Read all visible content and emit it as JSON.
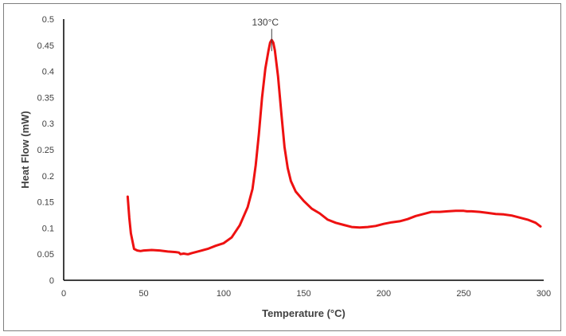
{
  "chart_data": {
    "type": "line",
    "title": "",
    "xlabel": "Temperature (°C)",
    "ylabel": "Heat Flow (mW)",
    "xlim": [
      0,
      300
    ],
    "ylim": [
      0,
      0.5
    ],
    "x_ticks": [
      0,
      50,
      100,
      150,
      200,
      250,
      300
    ],
    "y_ticks": [
      0,
      0.05,
      0.1,
      0.15,
      0.2,
      0.25,
      0.3,
      0.35,
      0.4,
      0.45,
      0.5
    ],
    "x_tick_labels": [
      "0",
      "50",
      "100",
      "150",
      "200",
      "250",
      "300"
    ],
    "y_tick_labels": [
      "0",
      "0.05",
      "0.1",
      "0.15",
      "0.2",
      "0.25",
      "0.3",
      "0.35",
      "0.4",
      "0.45",
      "0.5"
    ],
    "grid": false,
    "legend": "none",
    "line_color": "#ee1111",
    "annotation": {
      "text": "130°C",
      "x": 130,
      "y": 0.46
    },
    "series": [
      {
        "x": [
          40,
          41,
          42,
          43,
          44,
          46,
          48,
          50,
          55,
          60,
          65,
          70,
          72,
          73,
          75,
          77,
          78,
          80,
          85,
          90,
          95,
          100,
          105,
          110,
          115,
          118,
          120,
          122,
          124,
          126,
          128,
          129,
          130,
          131,
          132,
          134,
          136,
          138,
          140,
          142,
          145,
          150,
          155,
          160,
          165,
          170,
          175,
          180,
          185,
          190,
          195,
          200,
          205,
          210,
          215,
          220,
          225,
          230,
          235,
          240,
          245,
          250,
          252,
          255,
          260,
          265,
          270,
          275,
          280,
          285,
          290,
          295,
          298
        ],
        "y": [
          0.16,
          0.12,
          0.09,
          0.075,
          0.06,
          0.057,
          0.056,
          0.057,
          0.058,
          0.057,
          0.055,
          0.054,
          0.053,
          0.05,
          0.051,
          0.05,
          0.05,
          0.052,
          0.056,
          0.06,
          0.066,
          0.071,
          0.082,
          0.105,
          0.14,
          0.175,
          0.22,
          0.28,
          0.35,
          0.405,
          0.44,
          0.455,
          0.46,
          0.455,
          0.44,
          0.39,
          0.32,
          0.255,
          0.215,
          0.19,
          0.17,
          0.152,
          0.137,
          0.128,
          0.116,
          0.11,
          0.106,
          0.102,
          0.101,
          0.102,
          0.104,
          0.108,
          0.111,
          0.113,
          0.117,
          0.123,
          0.127,
          0.131,
          0.131,
          0.132,
          0.133,
          0.133,
          0.132,
          0.132,
          0.131,
          0.129,
          0.127,
          0.126,
          0.124,
          0.12,
          0.116,
          0.11,
          0.103
        ]
      }
    ]
  }
}
